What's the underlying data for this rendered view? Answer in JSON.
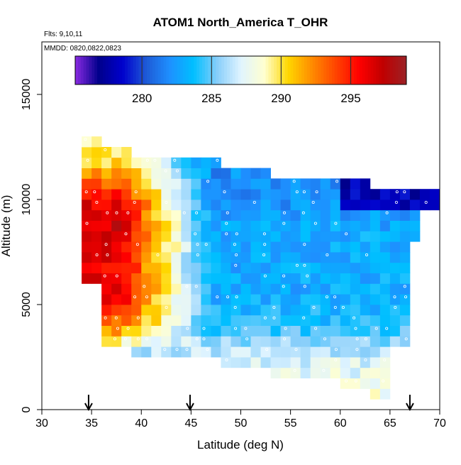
{
  "chart_data": {
    "type": "heatmap",
    "title": "ATOM1 North_America T_OHR",
    "annotations": [
      "Flts: 9,10,11",
      "MMDD: 0820,0822,0823"
    ],
    "xlabel": "Latitude (deg N)",
    "ylabel": "Altitude (m)",
    "xlim": [
      30,
      70
    ],
    "ylim": [
      0,
      17500
    ],
    "x_ticks": [
      30,
      35,
      40,
      45,
      50,
      55,
      60,
      65,
      70
    ],
    "y_ticks": [
      0,
      5000,
      10000,
      15000
    ],
    "colorbar": {
      "range": [
        275.2,
        299
      ],
      "ticks": [
        280,
        285,
        290,
        295
      ],
      "colors": [
        "#8a2be2",
        "#00008b",
        "#0000cd",
        "#1e5ad6",
        "#1e90ff",
        "#00bfff",
        "#87cefa",
        "#e0f4ff",
        "#ffffd0",
        "#ffd700",
        "#ff8c00",
        "#ff4500",
        "#ff0000",
        "#c00000",
        "#9b2226"
      ]
    },
    "cell_size": {
      "dlat": 1,
      "dalt": 500
    },
    "flight_markers_lat": [
      34.7,
      44.9,
      67
    ]
  }
}
